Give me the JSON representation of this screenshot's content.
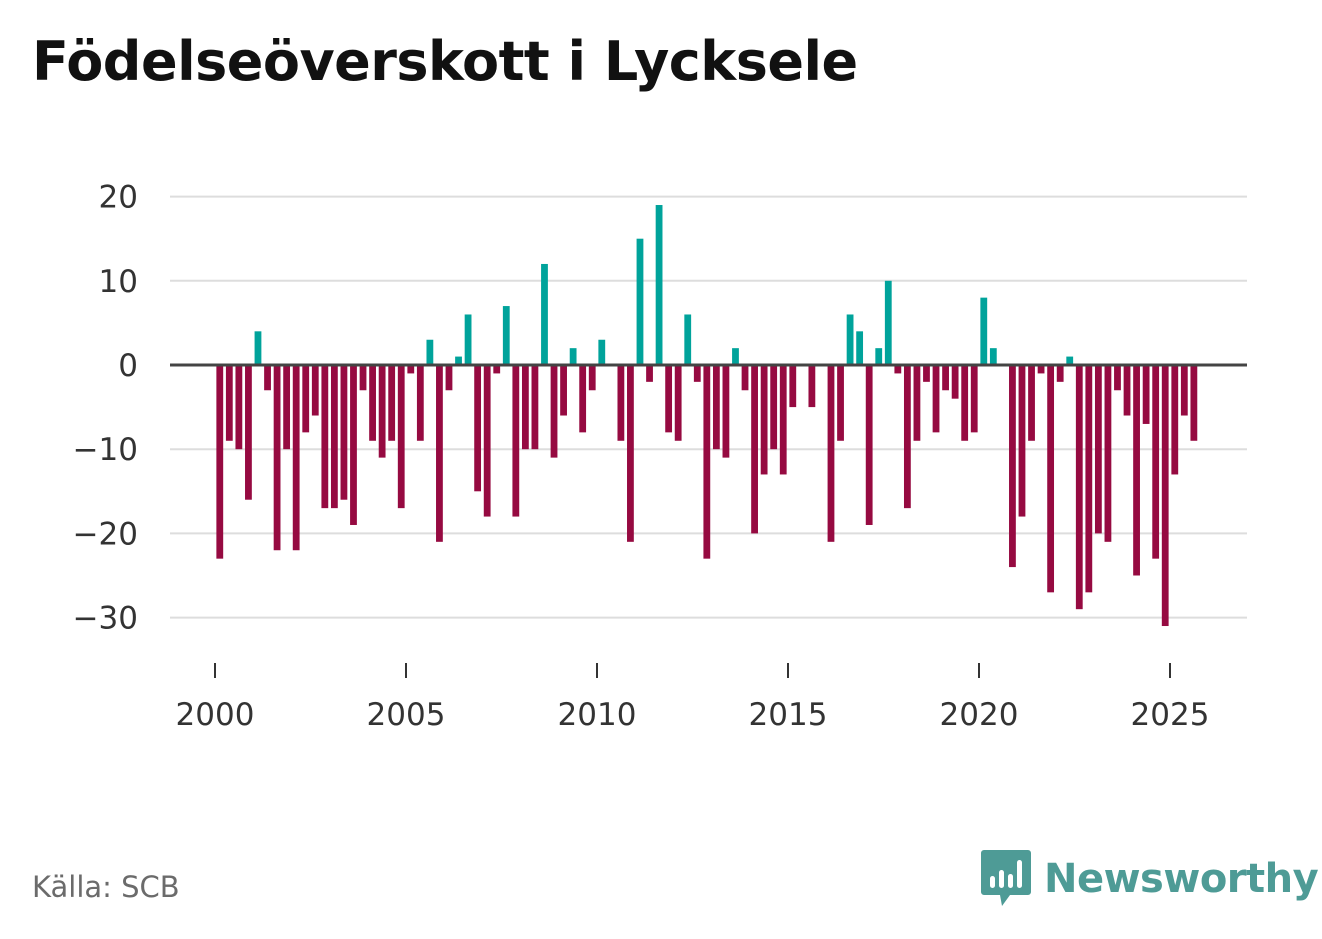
{
  "title": "Födelseöverskott i Lycksele",
  "source": "Källa: SCB",
  "brand": "Newsworthy",
  "colors": {
    "positive": "#00a39b",
    "negative": "#960a41",
    "grid": "#dddddd",
    "zero": "#444444",
    "brand": "#4e9b96"
  },
  "chart_data": {
    "type": "bar",
    "title": "Födelseöverskott i Lycksele",
    "xlabel": "",
    "ylabel": "",
    "ylim": [
      -35,
      22
    ],
    "xlim": [
      1999.5,
      2026.5
    ],
    "yticks": [
      20,
      10,
      0,
      -10,
      -20,
      -30
    ],
    "ytick_labels": [
      "20",
      "10",
      "0",
      "−10",
      "−20",
      "−30"
    ],
    "xticks": [
      2000,
      2005,
      2010,
      2015,
      2020,
      2025
    ],
    "xtick_labels": [
      "2000",
      "2005",
      "2010",
      "2015",
      "2020",
      "2025"
    ],
    "frequency": "quarterly",
    "start_year": 2000,
    "values": [
      -23,
      -9,
      -10,
      -16,
      4,
      -3,
      -22,
      -10,
      -22,
      -8,
      -6,
      -17,
      -17,
      -16,
      -19,
      -3,
      -9,
      -11,
      -9,
      -17,
      -1,
      -9,
      3,
      -21,
      -3,
      1,
      6,
      -15,
      -18,
      -1,
      7,
      -18,
      -10,
      -10,
      12,
      -11,
      -6,
      2,
      -8,
      -3,
      3,
      0,
      -9,
      -21,
      15,
      -2,
      19,
      -8,
      -9,
      6,
      -2,
      -23,
      -10,
      -11,
      2,
      -3,
      -20,
      -13,
      -10,
      -13,
      -5,
      0,
      -5,
      0,
      -21,
      -9,
      6,
      4,
      -19,
      2,
      10,
      -1,
      -17,
      -9,
      -2,
      -8,
      -3,
      -4,
      -9,
      -8,
      8,
      2,
      0,
      -24,
      -18,
      -9,
      -1,
      -27,
      -2,
      1,
      -29,
      -27,
      -20,
      -21,
      -3,
      -6,
      -25,
      -7,
      -23,
      -31,
      -13,
      -6,
      -9
    ]
  }
}
